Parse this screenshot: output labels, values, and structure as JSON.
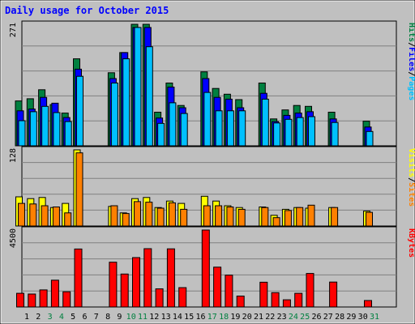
{
  "chart_data": {
    "type": "bar",
    "title": "Daily usage for October 2015",
    "categories": [
      "1",
      "2",
      "3",
      "4",
      "5",
      "6",
      "7",
      "8",
      "9",
      "10",
      "11",
      "12",
      "13",
      "14",
      "15",
      "16",
      "17",
      "18",
      "19",
      "20",
      "21",
      "22",
      "23",
      "24",
      "25",
      "26",
      "27",
      "28",
      "29",
      "30",
      "31"
    ],
    "weekend_days": [
      3,
      4,
      10,
      11,
      17,
      18,
      24,
      25,
      31
    ],
    "colors": {
      "background": "#C0C0C0",
      "hits": "#008040",
      "files": "#0000FF",
      "pages": "#00C0FF",
      "visits": "#FFFF00",
      "sites": "#FF8000",
      "kbytes": "#FF0000",
      "title": "#0000FF",
      "weekend_label": "#008040"
    },
    "panels": [
      {
        "id": "hits-files-pages",
        "ymax_label": "271",
        "ylim": [
          0,
          271
        ],
        "right_label": [
          {
            "text": "Pages",
            "color": "#00C0FF"
          },
          {
            "text": "/",
            "color": "#000000"
          },
          {
            "text": "Files",
            "color": "#0000FF"
          },
          {
            "text": "/",
            "color": "#000000"
          },
          {
            "text": "Hits",
            "color": "#008040"
          }
        ],
        "series": [
          {
            "name": "Hits",
            "color": "#008040",
            "values": [
              100,
              105,
              125,
              92,
              73,
              194,
              0,
              0,
              163,
              208,
              271,
              271,
              75,
              140,
              90,
              0,
              165,
              128,
              115,
              103,
              0,
              140,
              60,
              80,
              90,
              88,
              0,
              75,
              0,
              0,
              55
            ]
          },
          {
            "name": "Files",
            "color": "#0000FF",
            "values": [
              78,
              82,
              108,
              95,
              63,
              171,
              0,
              0,
              150,
              208,
              264,
              264,
              62,
              131,
              85,
              0,
              150,
              108,
              104,
              85,
              0,
              117,
              54,
              68,
              73,
              76,
              0,
              60,
              0,
              0,
              42
            ]
          },
          {
            "name": "Pages",
            "color": "#00C0FF",
            "values": [
              56,
              76,
              88,
              74,
              54,
              155,
              0,
              0,
              140,
              194,
              264,
              221,
              50,
              96,
              72,
              0,
              119,
              78,
              78,
              78,
              0,
              104,
              51,
              59,
              63,
              65,
              0,
              52,
              0,
              0,
              32
            ]
          }
        ]
      },
      {
        "id": "visits-sites",
        "ymax_label": "128",
        "ylim": [
          0,
          128
        ],
        "right_label": [
          {
            "text": "Sites",
            "color": "#FF8000"
          },
          {
            "text": "/",
            "color": "#000000"
          },
          {
            "text": "Visits",
            "color": "#FFFF00"
          }
        ],
        "series": [
          {
            "name": "Visits",
            "color": "#FFFF00",
            "values": [
              49,
              46,
              48,
              31,
              38,
              128,
              0,
              0,
              33,
              22,
              46,
              48,
              31,
              42,
              38,
              0,
              50,
              42,
              34,
              31,
              0,
              32,
              18,
              28,
              31,
              30,
              0,
              31,
              0,
              0,
              25
            ]
          },
          {
            "name": "Sites",
            "color": "#FF8000",
            "values": [
              38,
              37,
              34,
              32,
              22,
              123,
              0,
              0,
              34,
              21,
              41,
              40,
              30,
              39,
              28,
              0,
              34,
              34,
              32,
              28,
              0,
              31,
              14,
              26,
              31,
              35,
              0,
              31,
              0,
              0,
              23
            ]
          }
        ]
      },
      {
        "id": "kbytes",
        "ymax_label": "4500",
        "ylim": [
          0,
          4500
        ],
        "right_label": [
          {
            "text": "KBytes",
            "color": "#FF0000"
          }
        ],
        "series": [
          {
            "name": "KBytes",
            "color": "#FF0000",
            "values": [
              800,
              760,
              1000,
              1570,
              890,
              3390,
              0,
              0,
              2620,
              1930,
              2890,
              3410,
              1060,
              3400,
              1130,
              0,
              4500,
              2330,
              1860,
              640,
              0,
              1450,
              840,
              420,
              800,
              1960,
              0,
              1460,
              0,
              0,
              380
            ]
          }
        ]
      }
    ]
  }
}
